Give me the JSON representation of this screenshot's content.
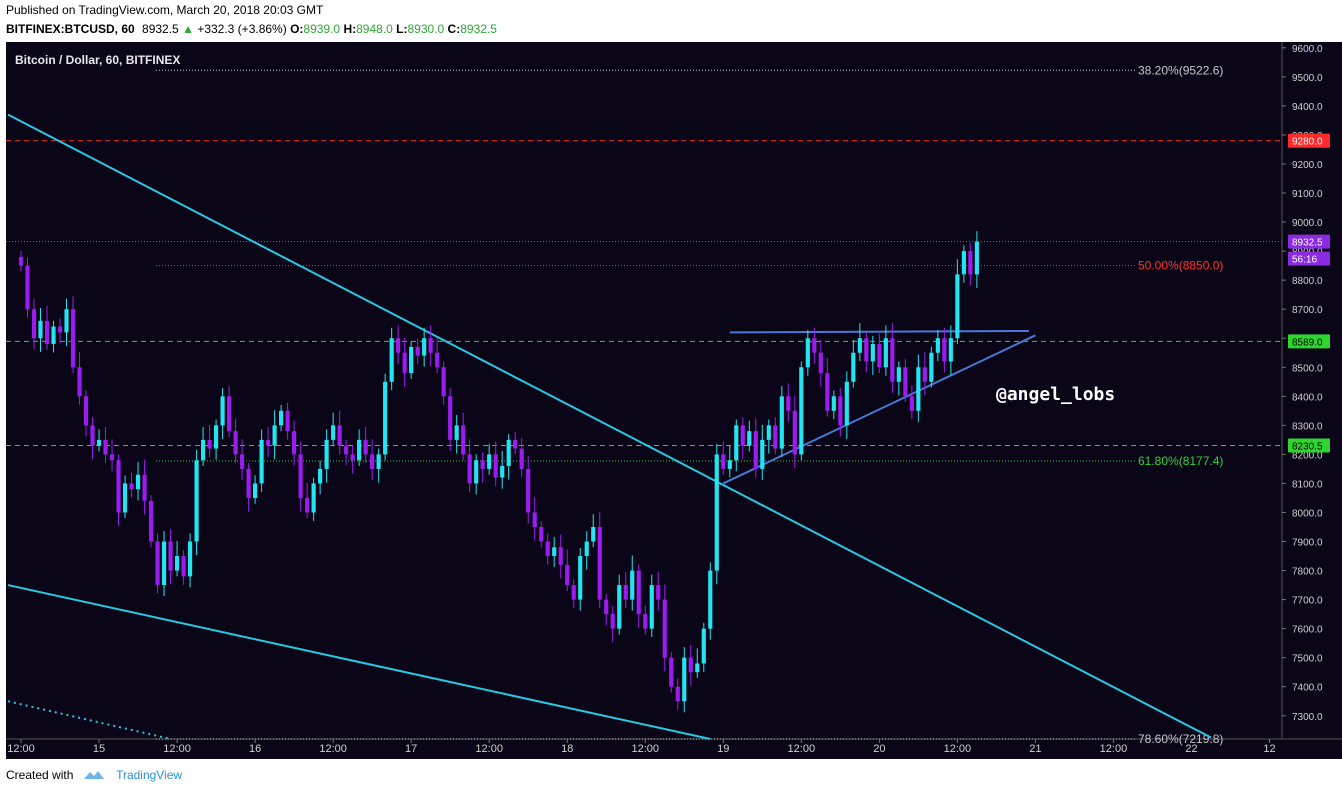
{
  "header": {
    "published": "Published on TradingView.com, March 20, 2018 20:03 GMT",
    "symbol": "BITFINEX:BTCUSD, 60",
    "last": "8932.5",
    "change": "+332.3 (+3.86%)",
    "o_label": "O:",
    "o": "8939.0",
    "h_label": "H:",
    "h": "8948.0",
    "l_label": "L:",
    "l": "8930.0",
    "c_label": "C:",
    "c": "8932.5"
  },
  "footer": {
    "created_with": "Created with",
    "brand": "TradingView"
  },
  "watermark": "@angel_lobs",
  "colors": {
    "background": "#0a0618",
    "up": "#22e5f2",
    "down": "#9b1cf0",
    "trend": "#27c9e3",
    "wedge": "#4a78d8",
    "red": "#ff2a2a",
    "green": "#30d430",
    "purple": "#a040ff"
  },
  "chart_data": {
    "type": "candlestick",
    "title": "Bitcoin / Dollar, 60, BITFINEX",
    "ylim": [
      7220,
      9620
    ],
    "y_ticks": [
      "7300.0",
      "7400.0",
      "7500.0",
      "7600.0",
      "7700.0",
      "7800.0",
      "7900.0",
      "8000.0",
      "8100.0",
      "8200.0",
      "8300.0",
      "8400.0",
      "8500.0",
      "8600.0",
      "8700.0",
      "8800.0",
      "8900.0",
      "9000.0",
      "9100.0",
      "9200.0",
      "9300.0",
      "9400.0",
      "9500.0",
      "9600.0"
    ],
    "x_ticks": [
      {
        "label": "12:00",
        "t": 0
      },
      {
        "label": "15",
        "t": 12
      },
      {
        "label": "12:00",
        "t": 24
      },
      {
        "label": "16",
        "t": 36
      },
      {
        "label": "12:00",
        "t": 48
      },
      {
        "label": "17",
        "t": 60
      },
      {
        "label": "12:00",
        "t": 72
      },
      {
        "label": "18",
        "t": 84
      },
      {
        "label": "12:00",
        "t": 96
      },
      {
        "label": "19",
        "t": 108
      },
      {
        "label": "12:00",
        "t": 120
      },
      {
        "label": "20",
        "t": 132
      },
      {
        "label": "12:00",
        "t": 144
      },
      {
        "label": "21",
        "t": 156
      },
      {
        "label": "12:00",
        "t": 168
      },
      {
        "label": "22",
        "t": 180
      },
      {
        "label": "12",
        "t": 192
      }
    ],
    "t_range": [
      -2,
      193
    ],
    "fib_levels": [
      {
        "label": "38.20%(9522.6)",
        "value": 9522.6,
        "color": "#c8c8c8"
      },
      {
        "label": "50.00%(8850.0)",
        "value": 8850.0,
        "color": "#ff3030"
      },
      {
        "label": "61.80%(8177.4)",
        "value": 8177.4,
        "color": "#30d430"
      },
      {
        "label": "78.60%(7219.8)",
        "value": 7219.8,
        "color": "#c8c8c8"
      }
    ],
    "horizontal_lines": [
      {
        "label": "9280.0",
        "value": 9280,
        "color": "#ff2a2a"
      },
      {
        "label": "8589.0",
        "value": 8589,
        "color": "#2ed52e"
      },
      {
        "label": "8230.5",
        "value": 8230.5,
        "color": "#2ed52e"
      }
    ],
    "last_price": {
      "label": "8932.5",
      "value": 8932.5,
      "countdown": "56:16"
    },
    "trendlines": [
      {
        "name": "upper-channel",
        "t1": -2,
        "v1": 9370,
        "t2": 183,
        "v2": 7225,
        "color": "#27c9e3",
        "dash": false
      },
      {
        "name": "lower-channel",
        "t1": -2,
        "v1": 7750,
        "t2": 106,
        "v2": 7220,
        "color": "#27c9e3",
        "dash": false
      },
      {
        "name": "dotted-channel",
        "t1": -2,
        "v1": 7350,
        "t2": 23,
        "v2": 7220,
        "color": "#27c9e3",
        "dash": true
      },
      {
        "name": "wedge-top",
        "t1": 109,
        "v1": 8620,
        "t2": 155,
        "v2": 8625,
        "color": "#4a78d8",
        "dash": false
      },
      {
        "name": "wedge-bottom",
        "t1": 108,
        "v1": 8100,
        "t2": 156,
        "v2": 8610,
        "color": "#4a78d8",
        "dash": false
      }
    ],
    "closes": [
      8850,
      8700,
      8600,
      8660,
      8580,
      8640,
      8620,
      8700,
      8500,
      8400,
      8300,
      8230,
      8250,
      8200,
      8180,
      8000,
      8100,
      8080,
      8130,
      8040,
      7900,
      7750,
      7900,
      7800,
      7850,
      7780,
      7900,
      8180,
      8250,
      8220,
      8300,
      8400,
      8280,
      8200,
      8150,
      8050,
      8100,
      8250,
      8230,
      8300,
      8350,
      8280,
      8200,
      8050,
      8000,
      8100,
      8150,
      8250,
      8300,
      8230,
      8200,
      8180,
      8250,
      8200,
      8150,
      8200,
      8450,
      8600,
      8550,
      8480,
      8570,
      8540,
      8600,
      8550,
      8500,
      8400,
      8250,
      8300,
      8200,
      8100,
      8180,
      8150,
      8200,
      8120,
      8160,
      8250,
      8220,
      8150,
      8000,
      7950,
      7900,
      7850,
      7880,
      7820,
      7750,
      7700,
      7850,
      7900,
      7950,
      7700,
      7650,
      7600,
      7750,
      7700,
      7800,
      7650,
      7600,
      7750,
      7700,
      7500,
      7400,
      7350,
      7500,
      7450,
      7480,
      7600,
      7800,
      8200,
      8150,
      8180,
      8300,
      8230,
      8280,
      8150,
      8250,
      8300,
      8220,
      8400,
      8350,
      8200,
      8500,
      8600,
      8550,
      8480,
      8350,
      8400,
      8300,
      8450,
      8550,
      8600,
      8520,
      8580,
      8500,
      8600,
      8450,
      8500,
      8400,
      8350,
      8500,
      8450,
      8550,
      8600,
      8520,
      8600,
      8820,
      8900,
      8820,
      8932.5
    ]
  }
}
